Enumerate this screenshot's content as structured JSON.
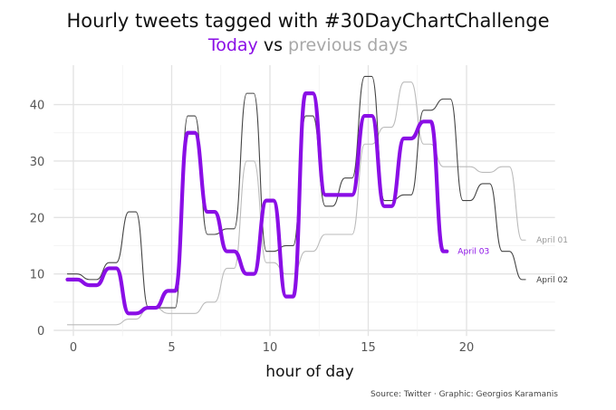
{
  "title": "Hourly tweets tagged with #30DayChartChallenge",
  "subtitle": {
    "today": "Today",
    "vs": "vs",
    "previous": "previous days"
  },
  "caption": "Source: Twitter · Graphic: Georgios Karamanis",
  "colors": {
    "today": "#8a0ee6",
    "april_02": "#444444",
    "april_01": "#bbbbbb",
    "grid": "#e3e3e3",
    "previous_text": "#a8a8a8",
    "tick_text": "#555555"
  },
  "chart_data": {
    "type": "line",
    "title": "Hourly tweets tagged with #30DayChartChallenge",
    "xlabel": "hour of day",
    "ylabel": "",
    "xlim": [
      -1,
      24.5
    ],
    "ylim": [
      -1,
      47
    ],
    "x_ticks": [
      0,
      5,
      10,
      15,
      20
    ],
    "y_ticks": [
      0,
      10,
      20,
      30,
      40
    ],
    "grid": true,
    "legend": "direct labels at line ends",
    "series": [
      {
        "name": "April 01",
        "color": "#bbbbbb",
        "x": [
          0,
          1,
          2,
          3,
          4,
          5,
          6,
          7,
          8,
          9,
          10,
          11,
          12,
          13,
          14,
          15,
          16,
          17,
          18,
          19,
          20,
          21,
          22,
          23
        ],
        "values": [
          1,
          1,
          1,
          2,
          4,
          3,
          3,
          5,
          11,
          30,
          12,
          10,
          14,
          17,
          17,
          33,
          36,
          44,
          33,
          29,
          29,
          28,
          29,
          16
        ]
      },
      {
        "name": "April 02",
        "color": "#444444",
        "x": [
          0,
          1,
          2,
          3,
          4,
          5,
          6,
          7,
          8,
          9,
          10,
          11,
          12,
          13,
          14,
          15,
          16,
          17,
          18,
          19,
          20,
          21,
          22,
          23
        ],
        "values": [
          10,
          9,
          12,
          21,
          4,
          4,
          38,
          17,
          18,
          42,
          14,
          15,
          38,
          22,
          27,
          45,
          23,
          24,
          39,
          41,
          23,
          26,
          14,
          9
        ]
      },
      {
        "name": "April 03",
        "color": "#8a0ee6",
        "x": [
          0,
          1,
          2,
          3,
          4,
          5,
          6,
          7,
          8,
          9,
          10,
          11,
          12,
          13,
          14,
          15,
          16,
          17,
          18,
          19
        ],
        "values": [
          9,
          8,
          11,
          3,
          4,
          7,
          35,
          21,
          14,
          10,
          23,
          6,
          42,
          24,
          24,
          38,
          22,
          34,
          37,
          14
        ]
      }
    ]
  }
}
